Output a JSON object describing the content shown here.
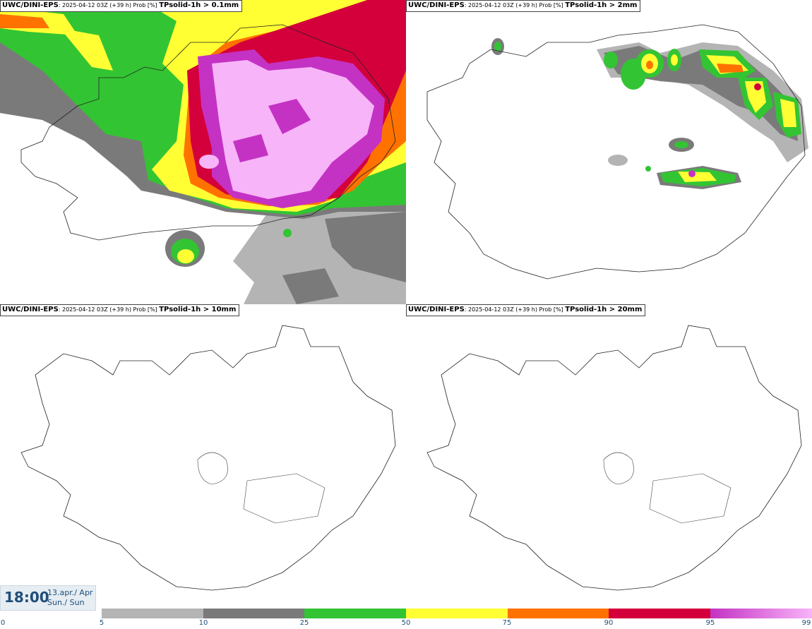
{
  "panels": [
    {
      "model": "UWC/DINI-EPS",
      "run": ": 2025-04-12 03Z (+39 h) Prob [%] ",
      "variable": "TPsolid-1h > 0.1mm"
    },
    {
      "model": "UWC/DINI-EPS",
      "run": ": 2025-04-12 03Z (+39 h) Prob [%] ",
      "variable": "TPsolid-1h > 2mm"
    },
    {
      "model": "UWC/DINI-EPS",
      "run": ": 2025-04-12 03Z (+39 h) Prob [%] ",
      "variable": "TPsolid-1h > 10mm"
    },
    {
      "model": "UWC/DINI-EPS",
      "run": ": 2025-04-12 03Z (+39 h) Prob [%] ",
      "variable": "TPsolid-1h > 20mm"
    }
  ],
  "time": {
    "clock": "18:00",
    "date_line": "13.apr./ Apr",
    "day_line": "Sun./ Sun"
  },
  "legend": {
    "ticks": [
      "0",
      "5",
      "10",
      "25",
      "50",
      "75",
      "90",
      "95",
      "99"
    ],
    "colors": {
      "c5": "#b4b4b4",
      "c10": "#7a7a7a",
      "c25": "#33c433",
      "c50": "#ffff33",
      "c75": "#ff7200",
      "c90": "#d4003c",
      "c95": "#c432c4",
      "c99": "#f8b4f8"
    }
  }
}
